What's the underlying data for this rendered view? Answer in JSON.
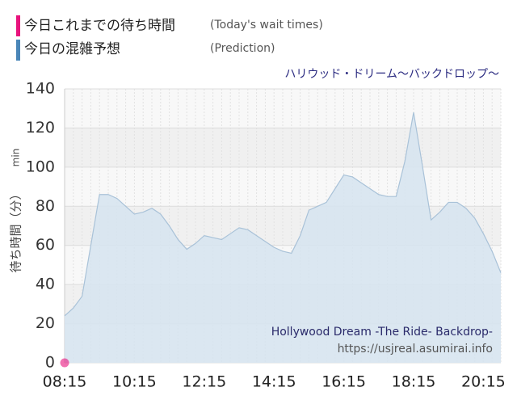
{
  "chart_data": {
    "type": "area",
    "title": "ハリウッド・ドリーム～バックドロップ～",
    "ylabel": "待ち時間（分）",
    "yunit": "min",
    "watermark": [
      "Hollywood Dream -The Ride- Backdrop-",
      "https://usjreal.asumirai.info"
    ],
    "categories": [
      "08:15",
      null,
      null,
      null,
      null,
      null,
      null,
      null,
      "10:15",
      null,
      null,
      null,
      null,
      null,
      null,
      null,
      "12:15",
      null,
      null,
      null,
      null,
      null,
      null,
      null,
      "14:15",
      null,
      null,
      null,
      null,
      null,
      null,
      null,
      "16:15",
      null,
      null,
      null,
      null,
      null,
      null,
      null,
      "18:15",
      null,
      null,
      null,
      null,
      null,
      null,
      null,
      "20:15",
      null,
      null
    ],
    "series": [
      {
        "name": "今日これまでの待ち時間",
        "note": "(Today's wait times)",
        "color": "#e8137d",
        "values": [
          0,
          null,
          null,
          null,
          null,
          null,
          null,
          null,
          null,
          null,
          null,
          null,
          null,
          null,
          null,
          null,
          null,
          null,
          null,
          null,
          null,
          null,
          null,
          null,
          null,
          null,
          null,
          null,
          null,
          null,
          null,
          null,
          null,
          null,
          null,
          null,
          null,
          null,
          null,
          null,
          null,
          null,
          null,
          null,
          null,
          null,
          null,
          null,
          null,
          null,
          null
        ]
      },
      {
        "name": "今日の混雑予想",
        "note": "(Prediction)",
        "color": "#4a86b8",
        "values": [
          24,
          28,
          34,
          60,
          86,
          86,
          84,
          80,
          76,
          77,
          79,
          76,
          70,
          63,
          58,
          61,
          65,
          64,
          63,
          66,
          69,
          68,
          65,
          62,
          59,
          57,
          56,
          65,
          78,
          80,
          82,
          89,
          96,
          95,
          92,
          89,
          86,
          85,
          85,
          103,
          128,
          101,
          73,
          77,
          82,
          82,
          79,
          74,
          66,
          57,
          46
        ]
      }
    ],
    "ylim": [
      0,
      140
    ],
    "yticks": [
      0,
      20,
      40,
      60,
      80,
      100,
      120,
      140
    ],
    "grid": true
  }
}
